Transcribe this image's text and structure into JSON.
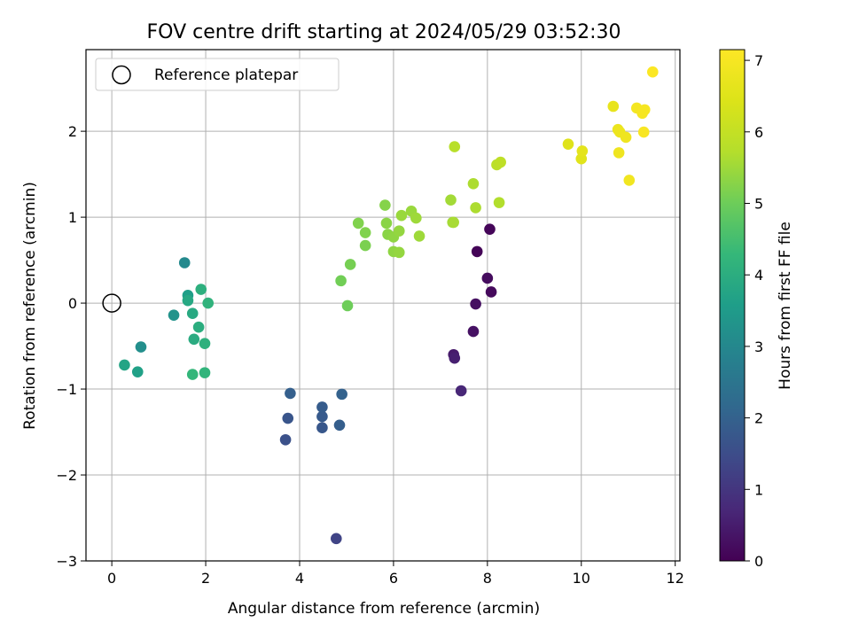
{
  "chart_data": {
    "type": "scatter",
    "title": "FOV centre drift starting at 2024/05/29 03:52:30",
    "xlabel": "Angular distance from reference (arcmin)",
    "ylabel": "Rotation from reference (arcmin)",
    "xlim": [
      -0.55,
      12.1
    ],
    "ylim": [
      -3.0,
      2.95
    ],
    "xticks": [
      0,
      2,
      4,
      6,
      8,
      10,
      12
    ],
    "yticks": [
      -3,
      -2,
      -1,
      0,
      1,
      2
    ],
    "xtick_labels": [
      "0",
      "2",
      "4",
      "6",
      "8",
      "10",
      "12"
    ],
    "ytick_labels": [
      "−3",
      "−2",
      "−1",
      "0",
      "1",
      "2"
    ],
    "grid": true,
    "legend": {
      "placement": "top-left",
      "entries": [
        "Reference platepar"
      ]
    },
    "reference_point": {
      "x": 0,
      "y": 0,
      "marker": "open-circle"
    },
    "colorbar": {
      "label": "Hours from first FF file",
      "colormap": "viridis",
      "range": [
        0,
        7.15
      ],
      "ticks": [
        0,
        1,
        2,
        3,
        4,
        5,
        6,
        7
      ],
      "tick_labels": [
        "0",
        "1",
        "2",
        "3",
        "4",
        "5",
        "6",
        "7"
      ]
    },
    "points": [
      {
        "x": 7.78,
        "y": 0.6,
        "h": 0.05
      },
      {
        "x": 8.05,
        "y": 0.86,
        "h": 0.1
      },
      {
        "x": 8.08,
        "y": 0.13,
        "h": 0.15
      },
      {
        "x": 8.0,
        "y": 0.29,
        "h": 0.2
      },
      {
        "x": 7.75,
        "y": -0.01,
        "h": 0.25
      },
      {
        "x": 7.7,
        "y": -0.33,
        "h": 0.3
      },
      {
        "x": 7.28,
        "y": -0.6,
        "h": 0.45
      },
      {
        "x": 7.3,
        "y": -0.64,
        "h": 0.55
      },
      {
        "x": 7.44,
        "y": -1.02,
        "h": 0.7
      },
      {
        "x": 4.78,
        "y": -2.74,
        "h": 1.3
      },
      {
        "x": 3.7,
        "y": -1.59,
        "h": 1.6
      },
      {
        "x": 3.75,
        "y": -1.34,
        "h": 1.7
      },
      {
        "x": 4.48,
        "y": -1.45,
        "h": 1.75
      },
      {
        "x": 4.48,
        "y": -1.32,
        "h": 1.8
      },
      {
        "x": 4.48,
        "y": -1.21,
        "h": 1.85
      },
      {
        "x": 4.85,
        "y": -1.42,
        "h": 1.9
      },
      {
        "x": 3.8,
        "y": -1.05,
        "h": 1.95
      },
      {
        "x": 4.9,
        "y": -1.06,
        "h": 2.0
      },
      {
        "x": 1.55,
        "y": 0.47,
        "h": 3.05
      },
      {
        "x": 0.62,
        "y": -0.51,
        "h": 3.2
      },
      {
        "x": 1.32,
        "y": -0.14,
        "h": 3.3
      },
      {
        "x": 1.62,
        "y": 0.09,
        "h": 3.6
      },
      {
        "x": 0.55,
        "y": -0.8,
        "h": 3.65
      },
      {
        "x": 0.27,
        "y": -0.72,
        "h": 3.75
      },
      {
        "x": 1.62,
        "y": 0.03,
        "h": 3.85
      },
      {
        "x": 1.72,
        "y": -0.12,
        "h": 3.9
      },
      {
        "x": 1.75,
        "y": -0.42,
        "h": 3.95
      },
      {
        "x": 1.85,
        "y": -0.28,
        "h": 4.0
      },
      {
        "x": 1.9,
        "y": 0.16,
        "h": 4.05
      },
      {
        "x": 1.98,
        "y": -0.47,
        "h": 4.1
      },
      {
        "x": 2.05,
        "y": 0.0,
        "h": 4.15
      },
      {
        "x": 1.98,
        "y": -0.81,
        "h": 4.2
      },
      {
        "x": 1.72,
        "y": -0.83,
        "h": 4.25
      },
      {
        "x": 5.02,
        "y": -0.03,
        "h": 5.0
      },
      {
        "x": 4.88,
        "y": 0.26,
        "h": 5.05
      },
      {
        "x": 5.08,
        "y": 0.45,
        "h": 5.1
      },
      {
        "x": 5.4,
        "y": 0.67,
        "h": 5.15
      },
      {
        "x": 5.4,
        "y": 0.82,
        "h": 5.2
      },
      {
        "x": 5.25,
        "y": 0.93,
        "h": 5.2
      },
      {
        "x": 5.82,
        "y": 1.14,
        "h": 5.25
      },
      {
        "x": 5.85,
        "y": 0.93,
        "h": 5.3
      },
      {
        "x": 5.88,
        "y": 0.8,
        "h": 5.3
      },
      {
        "x": 6.0,
        "y": 0.77,
        "h": 5.35
      },
      {
        "x": 6.0,
        "y": 0.6,
        "h": 5.35
      },
      {
        "x": 6.12,
        "y": 0.59,
        "h": 5.4
      },
      {
        "x": 6.12,
        "y": 0.84,
        "h": 5.4
      },
      {
        "x": 6.17,
        "y": 1.02,
        "h": 5.45
      },
      {
        "x": 6.38,
        "y": 1.07,
        "h": 5.45
      },
      {
        "x": 6.48,
        "y": 0.99,
        "h": 5.5
      },
      {
        "x": 6.55,
        "y": 0.78,
        "h": 5.5
      },
      {
        "x": 7.22,
        "y": 1.2,
        "h": 5.55
      },
      {
        "x": 7.26,
        "y": 0.94,
        "h": 5.55
      },
      {
        "x": 7.28,
        "y": 0.94,
        "h": 5.6
      },
      {
        "x": 7.7,
        "y": 1.39,
        "h": 5.65
      },
      {
        "x": 7.75,
        "y": 1.11,
        "h": 5.65
      },
      {
        "x": 8.25,
        "y": 1.17,
        "h": 5.7
      },
      {
        "x": 7.3,
        "y": 1.82,
        "h": 5.8
      },
      {
        "x": 8.2,
        "y": 1.61,
        "h": 5.85
      },
      {
        "x": 8.28,
        "y": 1.64,
        "h": 5.9
      },
      {
        "x": 9.72,
        "y": 1.85,
        "h": 6.5
      },
      {
        "x": 10.0,
        "y": 1.68,
        "h": 6.55
      },
      {
        "x": 10.02,
        "y": 1.77,
        "h": 6.6
      },
      {
        "x": 10.68,
        "y": 2.29,
        "h": 6.7
      },
      {
        "x": 10.78,
        "y": 2.02,
        "h": 6.75
      },
      {
        "x": 10.82,
        "y": 1.99,
        "h": 6.8
      },
      {
        "x": 10.8,
        "y": 1.75,
        "h": 6.85
      },
      {
        "x": 10.95,
        "y": 1.93,
        "h": 6.85
      },
      {
        "x": 11.02,
        "y": 1.43,
        "h": 6.9
      },
      {
        "x": 11.18,
        "y": 2.27,
        "h": 6.95
      },
      {
        "x": 11.3,
        "y": 2.21,
        "h": 7.0
      },
      {
        "x": 11.35,
        "y": 2.25,
        "h": 7.0
      },
      {
        "x": 11.33,
        "y": 1.99,
        "h": 7.05
      },
      {
        "x": 11.52,
        "y": 2.69,
        "h": 7.1
      }
    ]
  }
}
